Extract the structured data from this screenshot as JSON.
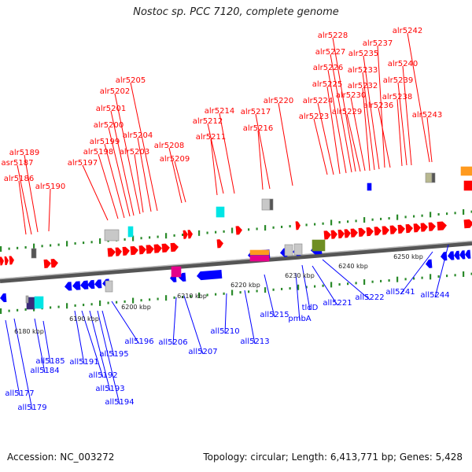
{
  "title": "Nostoc sp. PCC 7120, complete genome",
  "footer": {
    "accession": "Accession: NC_003272",
    "topology": "Topology: circular; Length: 6,413,771 bp; Genes: 5,428"
  },
  "colors": {
    "forward": "#ff0000",
    "reverse": "#0000ff",
    "axis": "#888888",
    "tick": "#2a8a2a",
    "cyan": "#00e5e5",
    "gray": "#c8c8c8",
    "magenta": "#e6008a",
    "olive": "#6f8e23",
    "orange": "#ff9a1e",
    "purple": "#3a2a7a"
  },
  "axis_labels": [
    "6180 kbp",
    "6190 kbp",
    "6200 kbp",
    "6210 kbp",
    "6220 kbp",
    "6230 kbp",
    "6240 kbp",
    "6250 kbp"
  ],
  "forward_genes": [
    "asr5187",
    "alr5186",
    "alr5189",
    "alr5190",
    "alr5197",
    "alr5198",
    "alr5199",
    "alr5200",
    "alr5201",
    "alr5202",
    "alr5205",
    "alr5203",
    "alr5204",
    "alr5208",
    "alr5209",
    "alr5211",
    "alr5212",
    "alr5214",
    "alr5216",
    "alr5217",
    "alr5220",
    "alr5223",
    "alr5224",
    "alr5225",
    "alr5226",
    "alr5227",
    "alr5228",
    "alr5229",
    "alr5230",
    "alr5232",
    "alr5233",
    "alr5235",
    "alr5237",
    "alr5236",
    "alr5238",
    "alr5239",
    "alr5240",
    "alr5242",
    "alr5243"
  ],
  "reverse_genes": [
    "all5177",
    "all5179",
    "all5184",
    "all5185",
    "all5191",
    "all5192",
    "all5193",
    "all5194",
    "all5195",
    "all5196",
    "all5206",
    "all5207",
    "all5210",
    "all5213",
    "all5215",
    "pmbA",
    "tldD",
    "all5221",
    "all5222",
    "all5241",
    "all5244"
  ]
}
